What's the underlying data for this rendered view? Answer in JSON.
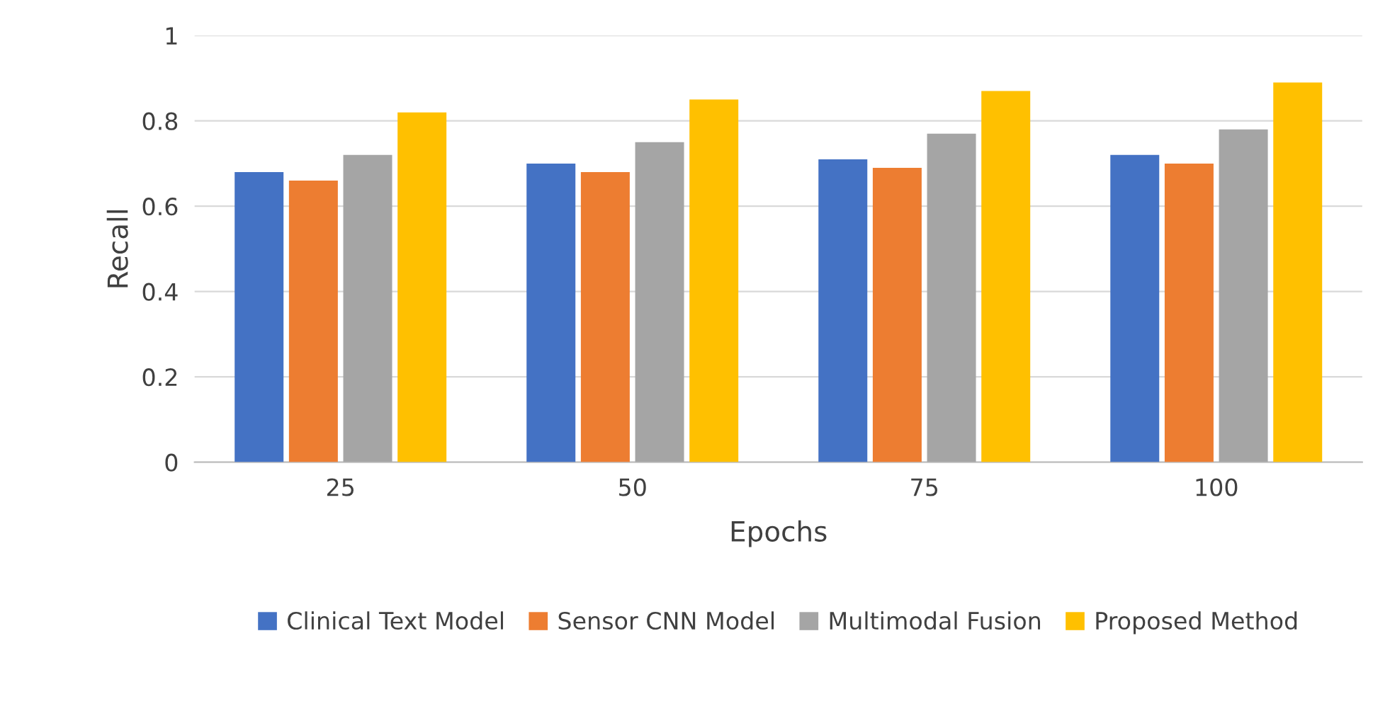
{
  "chart_data": {
    "type": "bar",
    "xlabel": "Epochs",
    "ylabel": "Recall",
    "categories": [
      "25",
      "50",
      "75",
      "100"
    ],
    "series": [
      {
        "name": "Clinical Text Model",
        "color": "#4472c4",
        "values": [
          0.68,
          0.7,
          0.71,
          0.72
        ]
      },
      {
        "name": "Sensor CNN Model",
        "color": "#ed7d31",
        "values": [
          0.66,
          0.68,
          0.69,
          0.7
        ]
      },
      {
        "name": "Multimodal Fusion",
        "color": "#a5a5a5",
        "values": [
          0.72,
          0.75,
          0.77,
          0.78
        ]
      },
      {
        "name": "Proposed Method",
        "color": "#ffc000",
        "values": [
          0.82,
          0.85,
          0.87,
          0.89
        ]
      }
    ],
    "ylim": [
      0,
      1
    ],
    "yticks": [
      0,
      0.2,
      0.4,
      0.6,
      0.8,
      1
    ],
    "grid": "y",
    "legend": "bottom"
  }
}
